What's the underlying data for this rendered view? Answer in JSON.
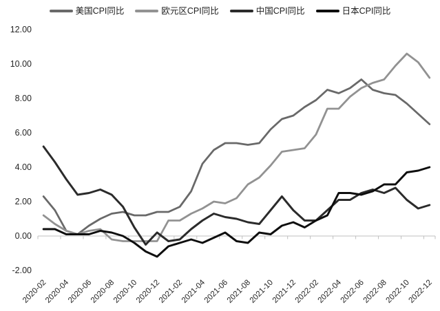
{
  "chart_data": {
    "type": "line",
    "title": "",
    "xlabel": "",
    "ylabel": "",
    "ylim": [
      -2,
      12
    ],
    "y_ticks": [
      12,
      10,
      8,
      6,
      4,
      2,
      0,
      -2
    ],
    "y_tick_labels": [
      "12.00",
      "10.00",
      "8.00",
      "6.00",
      "4.00",
      "2.00",
      "0.00",
      "-2.00"
    ],
    "x_label_every": 2,
    "x_label_rotation": 45,
    "grid": false,
    "legend_position": "top-center",
    "axis_color": "#bfbfbf",
    "categories": [
      "2020-02",
      "2020-03",
      "2020-04",
      "2020-05",
      "2020-06",
      "2020-07",
      "2020-08",
      "2020-09",
      "2020-10",
      "2020-11",
      "2020-12",
      "2021-01",
      "2021-02",
      "2021-03",
      "2021-04",
      "2021-05",
      "2021-06",
      "2021-07",
      "2021-08",
      "2021-09",
      "2021-10",
      "2021-11",
      "2021-12",
      "2022-01",
      "2022-02",
      "2022-03",
      "2022-04",
      "2022-05",
      "2022-06",
      "2022-07",
      "2022-08",
      "2022-09",
      "2022-10",
      "2022-11",
      "2022-12"
    ],
    "x_tick_labels": [
      "2020-02",
      "2020-04",
      "2020-06",
      "2020-08",
      "2020-10",
      "2020-12",
      "2021-02",
      "2021-04",
      "2021-06",
      "2021-08",
      "2021-10",
      "2021-12",
      "2022-02",
      "2022-04",
      "2022-06",
      "2022-08",
      "2022-10",
      "2022-12"
    ],
    "series": [
      {
        "name": "美国CPI同比",
        "color": "#696969",
        "values": [
          2.3,
          1.5,
          0.3,
          0.1,
          0.6,
          1.0,
          1.3,
          1.4,
          1.2,
          1.2,
          1.4,
          1.4,
          1.7,
          2.6,
          4.2,
          5.0,
          5.4,
          5.4,
          5.3,
          5.4,
          6.2,
          6.8,
          7.0,
          7.5,
          7.9,
          8.5,
          8.3,
          8.6,
          9.1,
          8.5,
          8.3,
          8.2,
          7.7,
          7.1,
          6.5
        ]
      },
      {
        "name": "欧元区CPI同比",
        "color": "#929292",
        "values": [
          1.2,
          0.7,
          0.3,
          0.1,
          0.3,
          0.4,
          -0.2,
          -0.3,
          -0.3,
          -0.3,
          -0.3,
          0.9,
          0.9,
          1.3,
          1.6,
          2.0,
          1.9,
          2.2,
          3.0,
          3.4,
          4.1,
          4.9,
          5.0,
          5.1,
          5.9,
          7.4,
          7.4,
          8.1,
          8.6,
          8.9,
          9.1,
          9.9,
          10.6,
          10.1,
          9.2
        ]
      },
      {
        "name": "中国CPI同比",
        "color": "#2b2b2b",
        "values": [
          5.2,
          4.3,
          3.3,
          2.4,
          2.5,
          2.7,
          2.4,
          1.7,
          0.5,
          -0.5,
          0.2,
          -0.3,
          -0.2,
          0.4,
          0.9,
          1.3,
          1.1,
          1.0,
          0.8,
          0.7,
          1.5,
          2.3,
          1.5,
          0.9,
          0.9,
          1.5,
          2.1,
          2.1,
          2.5,
          2.7,
          2.5,
          2.8,
          2.1,
          1.6,
          1.8
        ]
      },
      {
        "name": "日本CPI同比",
        "color": "#0e0e0e",
        "values": [
          0.4,
          0.4,
          0.1,
          0.1,
          0.1,
          0.3,
          0.2,
          0.0,
          -0.4,
          -0.9,
          -1.2,
          -0.6,
          -0.4,
          -0.2,
          -0.4,
          -0.1,
          0.2,
          -0.3,
          -0.4,
          0.2,
          0.1,
          0.6,
          0.8,
          0.5,
          0.9,
          1.2,
          2.5,
          2.5,
          2.4,
          2.6,
          3.0,
          3.0,
          3.7,
          3.8,
          4.0
        ]
      }
    ]
  }
}
